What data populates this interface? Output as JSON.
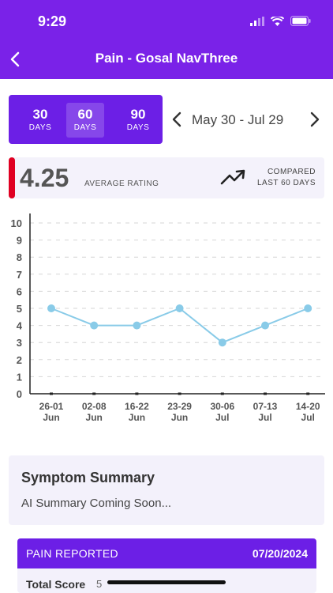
{
  "status_bar": {
    "time": "9:29"
  },
  "nav": {
    "title": "Pain - Gosal NavThree"
  },
  "range_selector": {
    "options": [
      {
        "value": "30",
        "unit": "DAYS"
      },
      {
        "value": "60",
        "unit": "DAYS"
      },
      {
        "value": "90",
        "unit": "DAYS"
      }
    ],
    "selected": "60"
  },
  "date_nav": {
    "label": "May 30 - Jul 29"
  },
  "average": {
    "value": "4.25",
    "label": "AVERAGE RATING",
    "compare_line1": "COMPARED",
    "compare_line2": "LAST 60 DAYS",
    "indicator_color": "#e00022"
  },
  "chart_data": {
    "type": "line",
    "categories": [
      [
        "26-01",
        "Jun"
      ],
      [
        "02-08",
        "Jun"
      ],
      [
        "16-22",
        "Jun"
      ],
      [
        "23-29",
        "Jun"
      ],
      [
        "30-06",
        "Jul"
      ],
      [
        "07-13",
        "Jul"
      ],
      [
        "14-20",
        "Jul"
      ]
    ],
    "values": [
      5,
      4,
      4,
      5,
      3,
      4,
      5
    ],
    "ylim": [
      0,
      10
    ],
    "yticks": [
      "0",
      "1",
      "2",
      "3",
      "4",
      "5",
      "6",
      "7",
      "8",
      "9",
      "10"
    ],
    "grid": true,
    "line_color": "#89cbe8"
  },
  "summary": {
    "title": "Symptom Summary",
    "text": "AI Summary Coming Soon..."
  },
  "report": {
    "title": "PAIN REPORTED",
    "date": "07/20/2024",
    "score_label": "Total Score",
    "score_value": "5"
  },
  "colors": {
    "primary": "#7a22e8",
    "card": "#f3f1fb"
  }
}
